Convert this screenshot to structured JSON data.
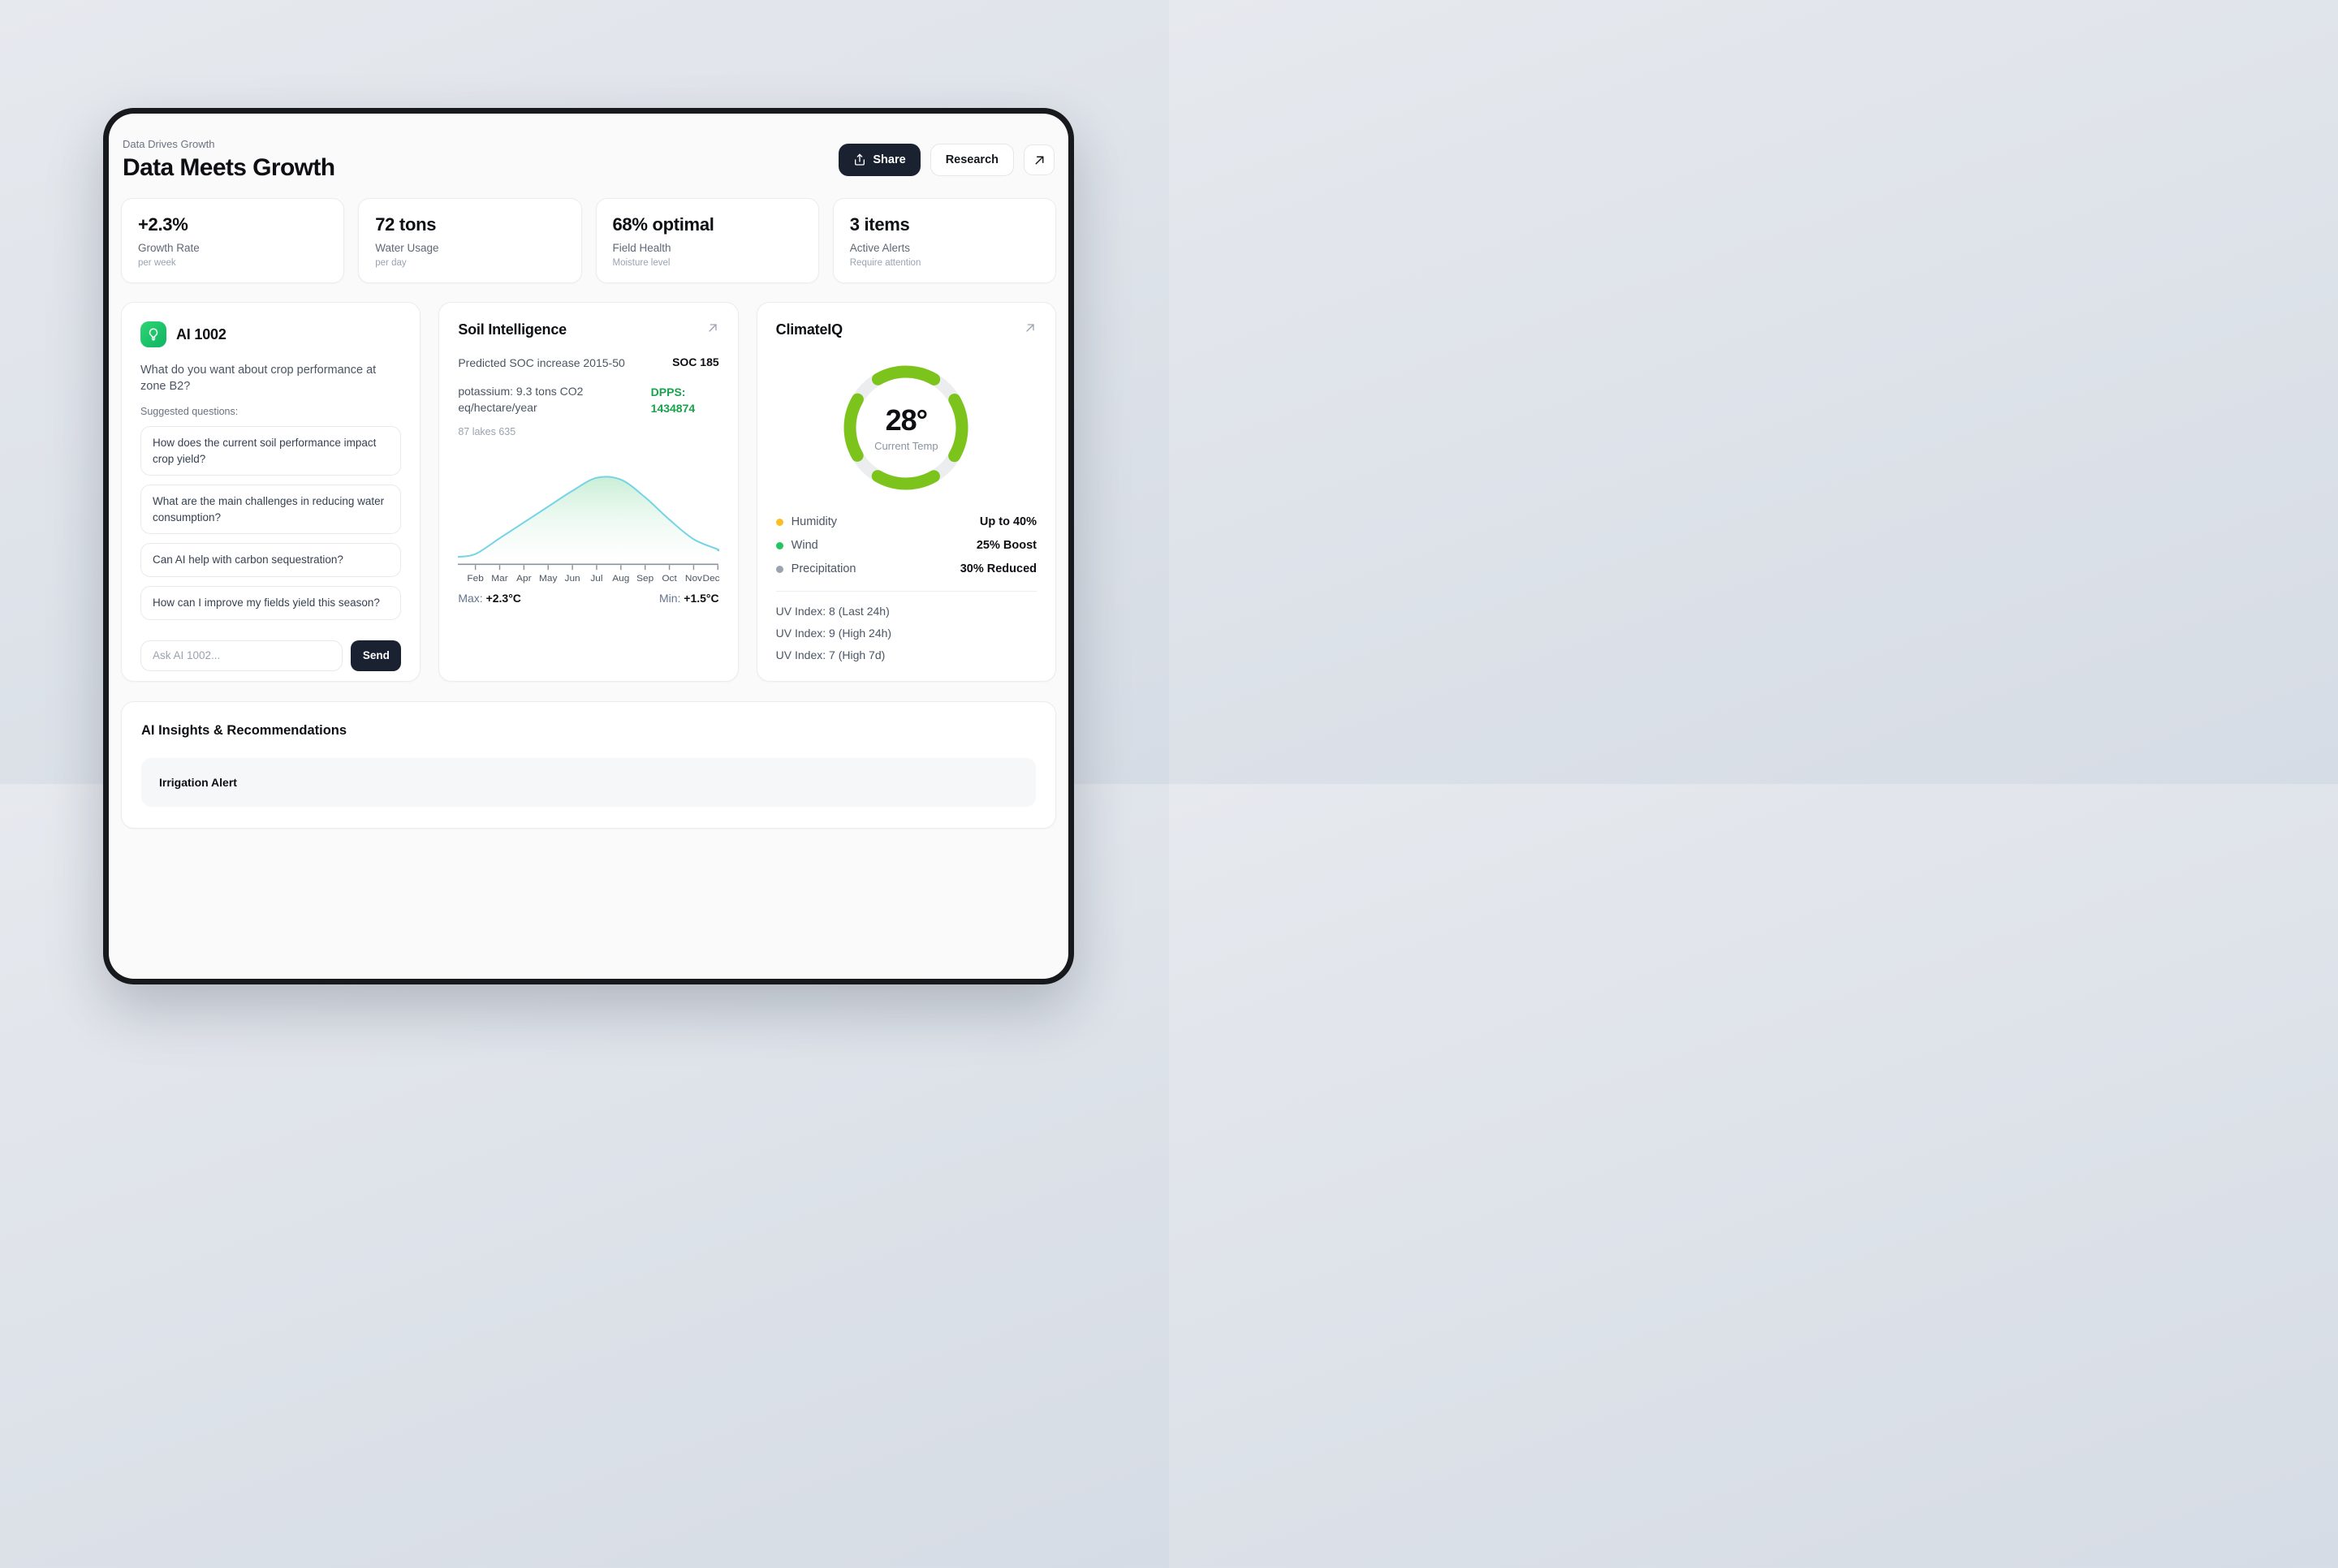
{
  "header": {
    "eyebrow": "Data Drives Growth",
    "title": "Data Meets Growth"
  },
  "toolbar": {
    "share_label": "Share",
    "research_label": "Research"
  },
  "stats": [
    {
      "value": "+2.3%",
      "label": "Growth Rate",
      "sublabel": "per week"
    },
    {
      "value": "72 tons",
      "label": "Water Usage",
      "sublabel": "per day"
    },
    {
      "value": "68% optimal",
      "label": "Field Health",
      "sublabel": "Moisture level"
    },
    {
      "value": "3 items",
      "label": "Active Alerts",
      "sublabel": "Require attention"
    }
  ],
  "ai": {
    "title": "AI 1002",
    "question": "What do you want about crop performance at zone B2?",
    "suggested_label": "Suggested questions:",
    "suggested": [
      "How does the current soil performance impact crop yield?",
      "What are the main challenges in reducing water consumption?",
      "Can AI help with carbon sequestration?",
      "How can I improve my fields yield this season?"
    ],
    "input_placeholder": "Ask AI 1002...",
    "send_label": "Send"
  },
  "soil": {
    "title": "Soil Intelligence",
    "rows": [
      {
        "label": "Predicted SOC increase 2015-50",
        "value": "SOC 185"
      },
      {
        "label": "potassium: 9.3 tons CO2 eq/hectare/year",
        "value": "DPPS: 1434874"
      }
    ],
    "note": "87 lakes 635",
    "max_label": "Max:",
    "max_value": "+2.3°C",
    "min_label": "Min:",
    "min_value": "+1.5°C"
  },
  "climate": {
    "title": "ClimateIQ",
    "gauge_value": "28°",
    "gauge_label": "Current Temp",
    "gauge_color": "#7cc41c",
    "gauge_track": "#ebedef",
    "metrics": [
      {
        "label": "Humidity",
        "value": "Up to 40%",
        "dot": "#fbbf24"
      },
      {
        "label": "Wind",
        "value": "25% Boost",
        "dot": "#22c55e"
      },
      {
        "label": "Precipitation",
        "value": "30% Reduced",
        "dot": "#9ca3af"
      }
    ],
    "uv": [
      "UV Index: 8 (Last 24h)",
      "UV Index: 9 (High 24h)",
      "UV Index: 7 (High 7d)"
    ]
  },
  "insights": {
    "title": "AI Insights & Recommendations",
    "alerts": [
      {
        "title": "Irrigation Alert"
      }
    ]
  },
  "chart_data": {
    "type": "area",
    "title": "Predicted SOC increase 2015-50",
    "categories": [
      "Feb",
      "Mar",
      "Apr",
      "May",
      "Jun",
      "Jul",
      "Aug",
      "Sep",
      "Oct",
      "Nov",
      "Dec"
    ],
    "values": [
      11,
      28,
      45,
      62,
      79,
      93,
      91,
      72,
      48,
      27,
      16
    ],
    "edge_start": 8,
    "edge_end": 15,
    "ylim": [
      0,
      100
    ],
    "grid": false,
    "line_color": "#74d4e6",
    "fill_top_color": "#c6edd4",
    "annotations": {
      "max": "+2.3°C",
      "min": "+1.5°C"
    }
  }
}
